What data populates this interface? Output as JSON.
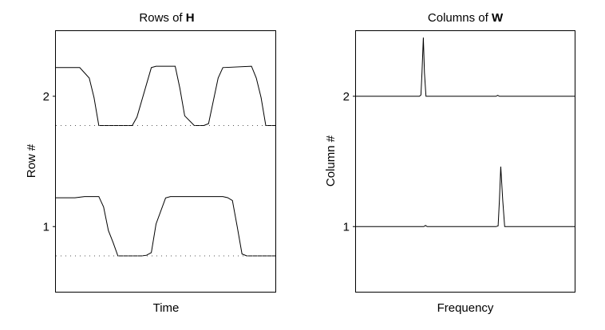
{
  "chart_data": [
    {
      "type": "line",
      "title_prefix": "Rows of ",
      "title_bold": "H",
      "xlabel": "Time",
      "ylabel": "Row #",
      "xlim": [
        0,
        46
      ],
      "ylim": [
        0.5,
        2.5
      ],
      "yticks": [
        1,
        2
      ],
      "grid": false,
      "legend": "none",
      "series": [
        {
          "offset": 1,
          "style": "solid",
          "x": [
            0,
            4,
            6,
            7,
            9,
            10,
            11,
            12,
            13,
            18,
            19,
            20,
            21,
            23,
            24,
            25,
            26,
            35,
            36,
            37,
            38,
            39,
            40,
            41,
            46
          ],
          "y": [
            1.221,
            1.221,
            1.23,
            1.23,
            1.23,
            1.15,
            0.97,
            0.878,
            0.775,
            0.775,
            0.78,
            0.8,
            1.02,
            1.22,
            1.23,
            1.23,
            1.23,
            1.23,
            1.222,
            1.2,
            1.0,
            0.79,
            0.775,
            0.775,
            0.775
          ]
        },
        {
          "offset": 1,
          "style": "dotted",
          "x": [
            0,
            46
          ],
          "y": [
            0.775,
            0.775
          ]
        },
        {
          "offset": 2,
          "style": "solid",
          "x": [
            0,
            5,
            7,
            8,
            9,
            16,
            17,
            20,
            21,
            25,
            26,
            27,
            29,
            31,
            32,
            34,
            35,
            41,
            42,
            43,
            44,
            46
          ],
          "y": [
            2.22,
            2.22,
            2.14,
            1.99,
            1.775,
            1.775,
            1.84,
            2.22,
            2.23,
            2.23,
            2.06,
            1.85,
            1.775,
            1.775,
            1.79,
            2.14,
            2.22,
            2.23,
            2.14,
            1.99,
            1.775,
            1.775
          ]
        },
        {
          "offset": 2,
          "style": "dotted",
          "x": [
            0,
            46
          ],
          "y": [
            1.775,
            1.775
          ]
        }
      ]
    },
    {
      "type": "line",
      "title_prefix": "Columns of ",
      "title_bold": "W",
      "xlabel": "Frequency",
      "ylabel": "Column #",
      "xlim": [
        0,
        1000
      ],
      "ylim": [
        0.5,
        2.5
      ],
      "yticks": [
        1,
        2
      ],
      "grid": false,
      "legend": "none",
      "series": [
        {
          "offset": 1,
          "style": "solid",
          "x": [
            0,
            310,
            318,
            326,
            640,
            650,
            656,
            662,
            671,
            680,
            1000
          ],
          "y": [
            1.0,
            1.0,
            1.008,
            1.0,
            1.0,
            1.005,
            1.2,
            1.46,
            1.2,
            1.0,
            1.0
          ],
          "peak_x": 662
        },
        {
          "offset": 2,
          "style": "solid",
          "x": [
            0,
            290,
            297,
            302,
            308,
            313,
            320,
            640,
            648,
            656,
            1000
          ],
          "y": [
            2.0,
            2.0,
            2.01,
            2.18,
            2.45,
            2.18,
            2.0,
            2.0,
            2.007,
            2.0,
            2.0
          ],
          "peak_x": 308
        }
      ]
    }
  ]
}
